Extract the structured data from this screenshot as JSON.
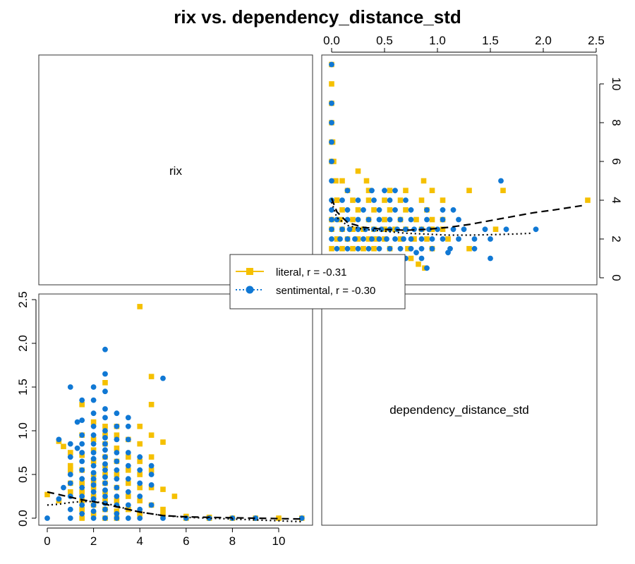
{
  "chart_data": {
    "type": "scatter",
    "title": "rix vs. dependency_distance_std",
    "variables": [
      "rix",
      "dependency_distance_std"
    ],
    "panels": {
      "upper_right": {
        "x_variable": "dependency_distance_std",
        "y_variable": "rix",
        "xlim": [
          0,
          2.5
        ],
        "ylim": [
          0,
          11
        ]
      },
      "lower_left": {
        "x_variable": "rix",
        "y_variable": "dependency_distance_std",
        "xlim": [
          0,
          11
        ],
        "ylim": [
          0,
          2.5
        ]
      }
    },
    "axes": {
      "top_ticks": [
        "0.0",
        "0.5",
        "1.0",
        "1.5",
        "2.0",
        "2.5"
      ],
      "right_ticks": [
        "0",
        "2",
        "4",
        "6",
        "8",
        "10"
      ],
      "bottom_ticks": [
        "0",
        "2",
        "4",
        "6",
        "8",
        "10"
      ],
      "left_ticks": [
        "0.0",
        "0.5",
        "1.0",
        "1.5",
        "2.0",
        "2.5"
      ]
    },
    "legend": {
      "placement": "center",
      "entries": [
        {
          "label": "literal, r = -0.31",
          "color": "#f5c000",
          "marker": "square",
          "line": "solid"
        },
        {
          "label": "sentimental, r = -0.30",
          "color": "#1078d4",
          "marker": "circle",
          "line": "dotted"
        }
      ]
    },
    "series": [
      {
        "key": "literal",
        "color": "#f5c000",
        "marker": "square",
        "points": [
          [
            2.5,
            0.1
          ],
          [
            3,
            0.08
          ],
          [
            4,
            0.05
          ],
          [
            5,
            0.04
          ],
          [
            6,
            0.02
          ],
          [
            7,
            0.01
          ],
          [
            10,
            0.0
          ],
          [
            11,
            0.0
          ],
          [
            0,
            0.27
          ],
          [
            0.5,
            0.2
          ],
          [
            0.5,
            0.88
          ],
          [
            0.7,
            0.82
          ],
          [
            1.0,
            0.55
          ],
          [
            1.0,
            0.75
          ],
          [
            1.0,
            0.6
          ],
          [
            1.0,
            0.4
          ],
          [
            1.0,
            0.3
          ],
          [
            1.5,
            1.3
          ],
          [
            1.5,
            0.95
          ],
          [
            1.5,
            0.72
          ],
          [
            1.5,
            0.55
          ],
          [
            1.5,
            0.4
          ],
          [
            1.5,
            0.3
          ],
          [
            1.5,
            0.2
          ],
          [
            1.5,
            0.1
          ],
          [
            1.5,
            0.0
          ],
          [
            2.0,
            1.1
          ],
          [
            2.0,
            0.9
          ],
          [
            2.0,
            0.78
          ],
          [
            2.0,
            0.65
          ],
          [
            2.0,
            0.5
          ],
          [
            2.0,
            0.42
          ],
          [
            2.0,
            0.35
          ],
          [
            2.0,
            0.25
          ],
          [
            2.0,
            0.15
          ],
          [
            2.0,
            0.05
          ],
          [
            2.5,
            1.55
          ],
          [
            2.5,
            1.05
          ],
          [
            2.5,
            0.95
          ],
          [
            2.5,
            0.85
          ],
          [
            2.5,
            0.7
          ],
          [
            2.5,
            0.6
          ],
          [
            2.5,
            0.5
          ],
          [
            2.5,
            0.4
          ],
          [
            2.5,
            0.3
          ],
          [
            2.5,
            0.2
          ],
          [
            2.5,
            0.0
          ],
          [
            3.0,
            1.05
          ],
          [
            3.0,
            0.95
          ],
          [
            3.0,
            0.8
          ],
          [
            3.0,
            0.65
          ],
          [
            3.0,
            0.5
          ],
          [
            3.0,
            0.35
          ],
          [
            3.0,
            0.2
          ],
          [
            3.0,
            0.0
          ],
          [
            3.5,
            0.9
          ],
          [
            3.5,
            0.7
          ],
          [
            3.5,
            0.55
          ],
          [
            3.5,
            0.4
          ],
          [
            3.5,
            0.25
          ],
          [
            3.5,
            0.1
          ],
          [
            4.0,
            2.42
          ],
          [
            4.0,
            1.05
          ],
          [
            4.0,
            0.85
          ],
          [
            4.0,
            0.65
          ],
          [
            4.0,
            0.5
          ],
          [
            4.0,
            0.35
          ],
          [
            4.0,
            0.2
          ],
          [
            4.0,
            0.05
          ],
          [
            4.5,
            1.62
          ],
          [
            4.5,
            1.3
          ],
          [
            4.5,
            0.95
          ],
          [
            4.5,
            0.7
          ],
          [
            4.5,
            0.55
          ],
          [
            4.5,
            0.35
          ],
          [
            4.5,
            0.15
          ],
          [
            5.0,
            0.87
          ],
          [
            5.0,
            0.33
          ],
          [
            5.0,
            0.1
          ],
          [
            5.5,
            0.25
          ],
          [
            6.0,
            0.0
          ],
          [
            7.0,
            0.0
          ],
          [
            8.0,
            0.0
          ],
          [
            9.0,
            0.0
          ]
        ]
      },
      {
        "key": "sentimental",
        "color": "#1078d4",
        "marker": "circle",
        "points": [
          [
            0,
            0.0
          ],
          [
            0.5,
            0.22
          ],
          [
            0.5,
            0.9
          ],
          [
            0.7,
            0.35
          ],
          [
            1.0,
            1.5
          ],
          [
            1.0,
            0.85
          ],
          [
            1.0,
            0.7
          ],
          [
            1.0,
            0.5
          ],
          [
            1.0,
            0.4
          ],
          [
            1.0,
            0.25
          ],
          [
            1.0,
            0.1
          ],
          [
            1.0,
            0.0
          ],
          [
            1.3,
            1.1
          ],
          [
            1.3,
            0.8
          ],
          [
            1.5,
            1.35
          ],
          [
            1.5,
            1.12
          ],
          [
            1.5,
            0.95
          ],
          [
            1.5,
            0.85
          ],
          [
            1.5,
            0.75
          ],
          [
            1.5,
            0.65
          ],
          [
            1.5,
            0.55
          ],
          [
            1.5,
            0.45
          ],
          [
            1.5,
            0.35
          ],
          [
            1.5,
            0.25
          ],
          [
            1.5,
            0.15
          ],
          [
            1.5,
            0.05
          ],
          [
            2.0,
            1.5
          ],
          [
            2.0,
            1.35
          ],
          [
            2.0,
            1.2
          ],
          [
            2.0,
            1.05
          ],
          [
            2.0,
            0.95
          ],
          [
            2.0,
            0.85
          ],
          [
            2.0,
            0.75
          ],
          [
            2.0,
            0.68
          ],
          [
            2.0,
            0.6
          ],
          [
            2.0,
            0.52
          ],
          [
            2.0,
            0.45
          ],
          [
            2.0,
            0.38
          ],
          [
            2.0,
            0.3
          ],
          [
            2.0,
            0.22
          ],
          [
            2.0,
            0.15
          ],
          [
            2.0,
            0.08
          ],
          [
            2.0,
            0.0
          ],
          [
            2.5,
            1.93
          ],
          [
            2.5,
            1.65
          ],
          [
            2.5,
            1.45
          ],
          [
            2.5,
            1.25
          ],
          [
            2.5,
            1.15
          ],
          [
            2.5,
            1.0
          ],
          [
            2.5,
            0.92
          ],
          [
            2.5,
            0.85
          ],
          [
            2.5,
            0.78
          ],
          [
            2.5,
            0.7
          ],
          [
            2.5,
            0.62
          ],
          [
            2.5,
            0.55
          ],
          [
            2.5,
            0.47
          ],
          [
            2.5,
            0.4
          ],
          [
            2.5,
            0.32
          ],
          [
            2.5,
            0.25
          ],
          [
            2.5,
            0.17
          ],
          [
            2.5,
            0.1
          ],
          [
            2.5,
            0.0
          ],
          [
            3.0,
            1.2
          ],
          [
            3.0,
            1.05
          ],
          [
            3.0,
            0.9
          ],
          [
            3.0,
            0.75
          ],
          [
            3.0,
            0.65
          ],
          [
            3.0,
            0.55
          ],
          [
            3.0,
            0.45
          ],
          [
            3.0,
            0.35
          ],
          [
            3.0,
            0.25
          ],
          [
            3.0,
            0.15
          ],
          [
            3.0,
            0.05
          ],
          [
            3.0,
            0.0
          ],
          [
            3.5,
            1.15
          ],
          [
            3.5,
            1.05
          ],
          [
            3.5,
            0.9
          ],
          [
            3.5,
            0.75
          ],
          [
            3.5,
            0.6
          ],
          [
            3.5,
            0.45
          ],
          [
            3.5,
            0.3
          ],
          [
            3.5,
            0.15
          ],
          [
            3.5,
            0.0
          ],
          [
            4.0,
            0.7
          ],
          [
            4.0,
            0.55
          ],
          [
            4.0,
            0.4
          ],
          [
            4.0,
            0.25
          ],
          [
            4.0,
            0.1
          ],
          [
            4.0,
            0.0
          ],
          [
            4.5,
            0.6
          ],
          [
            4.5,
            0.5
          ],
          [
            4.5,
            0.38
          ],
          [
            4.5,
            0.15
          ],
          [
            5.0,
            1.6
          ],
          [
            5.0,
            0.0
          ],
          [
            6.0,
            0.0
          ],
          [
            7.0,
            0.0
          ],
          [
            8.0,
            0.0
          ],
          [
            9.0,
            0.0
          ],
          [
            11.0,
            0.0
          ]
        ]
      }
    ],
    "smoothers": {
      "literal": {
        "style": "dashed",
        "color": "#000000",
        "curve": [
          [
            0,
            0.3
          ],
          [
            0.5,
            0.27
          ],
          [
            1,
            0.24
          ],
          [
            1.5,
            0.21
          ],
          [
            2,
            0.19
          ],
          [
            2.5,
            0.16
          ],
          [
            3,
            0.13
          ],
          [
            3.5,
            0.1
          ],
          [
            4,
            0.07
          ],
          [
            4.5,
            0.05
          ],
          [
            5,
            0.03
          ],
          [
            6,
            0.015
          ],
          [
            7,
            0.01
          ],
          [
            8,
            0.005
          ],
          [
            9,
            0.0
          ],
          [
            10,
            -0.005
          ],
          [
            11,
            -0.01
          ]
        ]
      },
      "sentimental": {
        "style": "dotted",
        "color": "#000000",
        "curve": [
          [
            0,
            0.15
          ],
          [
            0.5,
            0.16
          ],
          [
            1,
            0.18
          ],
          [
            1.5,
            0.19
          ],
          [
            2,
            0.19
          ],
          [
            2.5,
            0.17
          ],
          [
            3,
            0.14
          ],
          [
            3.5,
            0.1
          ],
          [
            4,
            0.07
          ],
          [
            4.5,
            0.05
          ],
          [
            5,
            0.03
          ],
          [
            6,
            0.01
          ],
          [
            7,
            0.0
          ],
          [
            8,
            -0.01
          ],
          [
            9,
            -0.02
          ],
          [
            10,
            -0.03
          ],
          [
            11,
            -0.04
          ]
        ]
      }
    }
  }
}
